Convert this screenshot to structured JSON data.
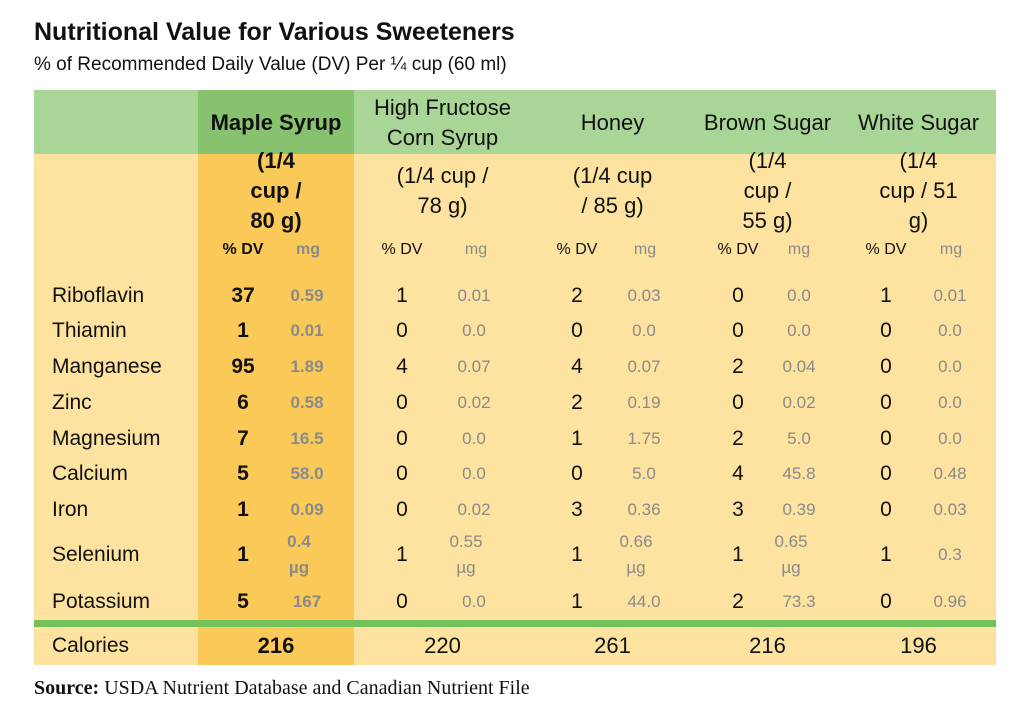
{
  "chart_data": {
    "type": "table",
    "title": "Nutritional Value for Various Sweeteners",
    "subtitle": "% of Recommended Daily Value (DV) Per ¼  cup (60 ml)",
    "columns": [
      {
        "name": "Maple Syrup",
        "serving": "(1/4 cup / 80 g)"
      },
      {
        "name": "High Fructose Corn Syrup",
        "serving": "(1/4 cup / 78 g)"
      },
      {
        "name": "Honey",
        "serving": "(1/4 cup / 85 g)"
      },
      {
        "name": "Brown Sugar",
        "serving": "(1/4 cup / 55 g)"
      },
      {
        "name": "White Sugar",
        "serving": "(1/4 cup / 51 g)"
      }
    ],
    "units": {
      "dv": "% DV",
      "mg": "mg"
    },
    "rows": [
      {
        "label": "Riboflavin",
        "values": [
          [
            "37",
            "0.59"
          ],
          [
            "1",
            "0.01"
          ],
          [
            "2",
            "0.03"
          ],
          [
            "0",
            "0.0"
          ],
          [
            "1",
            "0.01"
          ]
        ]
      },
      {
        "label": "Thiamin",
        "values": [
          [
            "1",
            "0.01"
          ],
          [
            "0",
            "0.0"
          ],
          [
            "0",
            "0.0"
          ],
          [
            "0",
            "0.0"
          ],
          [
            "0",
            "0.0"
          ]
        ]
      },
      {
        "label": "Manganese",
        "values": [
          [
            "95",
            "1.89"
          ],
          [
            "4",
            "0.07"
          ],
          [
            "4",
            "0.07"
          ],
          [
            "2",
            "0.04"
          ],
          [
            "0",
            "0.0"
          ]
        ]
      },
      {
        "label": "Zinc",
        "values": [
          [
            "6",
            "0.58"
          ],
          [
            "0",
            "0.02"
          ],
          [
            "2",
            "0.19"
          ],
          [
            "0",
            "0.02"
          ],
          [
            "0",
            "0.0"
          ]
        ]
      },
      {
        "label": "Magnesium",
        "values": [
          [
            "7",
            "16.5"
          ],
          [
            "0",
            "0.0"
          ],
          [
            "1",
            "1.75"
          ],
          [
            "2",
            "5.0"
          ],
          [
            "0",
            "0.0"
          ]
        ]
      },
      {
        "label": "Calcium",
        "values": [
          [
            "5",
            "58.0"
          ],
          [
            "0",
            "0.0"
          ],
          [
            "0",
            "5.0"
          ],
          [
            "4",
            "45.8"
          ],
          [
            "0",
            "0.48"
          ]
        ]
      },
      {
        "label": "Iron",
        "values": [
          [
            "1",
            "0.09"
          ],
          [
            "0",
            "0.02"
          ],
          [
            "3",
            "0.36"
          ],
          [
            "3",
            "0.39"
          ],
          [
            "0",
            "0.03"
          ]
        ]
      },
      {
        "label": "Selenium",
        "values": [
          [
            "1",
            "0.4 µg"
          ],
          [
            "1",
            "0.55 µg"
          ],
          [
            "1",
            "0.66 µg"
          ],
          [
            "1",
            "0.65 µg"
          ],
          [
            "1",
            "0.3"
          ]
        ]
      },
      {
        "label": "Potassium",
        "values": [
          [
            "5",
            "167"
          ],
          [
            "0",
            "0.0"
          ],
          [
            "1",
            "44.0"
          ],
          [
            "2",
            "73.3"
          ],
          [
            "0",
            "0.96"
          ]
        ]
      }
    ],
    "calories": {
      "label": "Calories",
      "values": [
        "216",
        "220",
        "261",
        "216",
        "196"
      ]
    }
  },
  "source": {
    "label": "Source:",
    "text": " USDA Nutrient Database and Canadian Nutrient File"
  },
  "colors": {
    "header_green": "#a9d597",
    "maple_header": "#87c36f",
    "maple_col": "#fbc958",
    "body": "#fde39f",
    "rule": "#72c15a"
  }
}
